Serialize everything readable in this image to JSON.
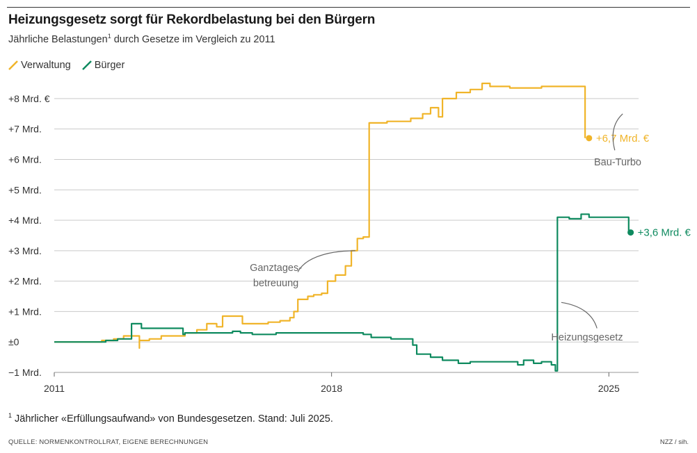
{
  "header": {
    "title": "Heizungsgesetz sorgt für Rekordbelastung bei den Bürgern",
    "subtitle_before": "Jährliche Belastungen",
    "subtitle_sup": "1",
    "subtitle_after": " durch Gesetze im Vergleich zu 2011"
  },
  "legend": [
    {
      "label": "Verwaltung",
      "color": "#F0B429"
    },
    {
      "label": "Bürger",
      "color": "#0E8A5F"
    }
  ],
  "footer": {
    "footnote_sup": "1",
    "footnote": " Jährlicher «Erfüllungsaufwand» von Bundesgesetzen. Stand: Juli 2025.",
    "source": "QUELLE: NORMENKONTROLLRAT, EIGENE BERECHNUNGEN",
    "credit": "NZZ / sih."
  },
  "chart_data": {
    "type": "line",
    "title": "Heizungsgesetz sorgt für Rekordbelastung bei den Bürgern",
    "ylabel": "Jährliche Belastungen (Mrd. €)",
    "xlim": [
      2011.0,
      2025.75
    ],
    "ylim": [
      -1,
      8.5
    ],
    "x_ticks": [
      {
        "value": 2011,
        "label": "2011"
      },
      {
        "value": 2018,
        "label": "2018"
      },
      {
        "value": 2025,
        "label": "2025"
      }
    ],
    "y_ticks": [
      {
        "value": 8,
        "label": "+8 Mrd. €"
      },
      {
        "value": 7,
        "label": "+7 Mrd."
      },
      {
        "value": 6,
        "label": "+6 Mrd."
      },
      {
        "value": 5,
        "label": "+5 Mrd."
      },
      {
        "value": 4,
        "label": "+4 Mrd."
      },
      {
        "value": 3,
        "label": "+3 Mrd."
      },
      {
        "value": 2,
        "label": "+2 Mrd."
      },
      {
        "value": 1,
        "label": "+1 Mrd."
      },
      {
        "value": 0,
        "label": "±0"
      },
      {
        "value": -1,
        "label": "−1 Mrd."
      }
    ],
    "series": [
      {
        "name": "Verwaltung",
        "color": "#F0B429",
        "end_label": "+6,7 Mrd. €",
        "points": [
          [
            2011.0,
            0
          ],
          [
            2012.2,
            0
          ],
          [
            2012.2,
            0.05
          ],
          [
            2012.5,
            0.05
          ],
          [
            2012.5,
            0.1
          ],
          [
            2012.75,
            0.1
          ],
          [
            2012.75,
            0.2
          ],
          [
            2013.15,
            0.2
          ],
          [
            2013.15,
            -0.2
          ],
          [
            2013.15,
            0.05
          ],
          [
            2013.4,
            0.05
          ],
          [
            2013.4,
            0.1
          ],
          [
            2013.7,
            0.1
          ],
          [
            2013.7,
            0.2
          ],
          [
            2014.0,
            0.2
          ],
          [
            2014.0,
            0.2
          ],
          [
            2014.3,
            0.2
          ],
          [
            2014.3,
            0.3
          ],
          [
            2014.6,
            0.3
          ],
          [
            2014.6,
            0.4
          ],
          [
            2014.85,
            0.4
          ],
          [
            2014.85,
            0.6
          ],
          [
            2015.1,
            0.6
          ],
          [
            2015.1,
            0.5
          ],
          [
            2015.25,
            0.5
          ],
          [
            2015.25,
            0.85
          ],
          [
            2015.75,
            0.85
          ],
          [
            2015.75,
            0.6
          ],
          [
            2016.4,
            0.6
          ],
          [
            2016.4,
            0.65
          ],
          [
            2016.7,
            0.65
          ],
          [
            2016.7,
            0.7
          ],
          [
            2016.95,
            0.7
          ],
          [
            2016.95,
            0.8
          ],
          [
            2017.05,
            0.8
          ],
          [
            2017.05,
            1.0
          ],
          [
            2017.15,
            1.0
          ],
          [
            2017.15,
            1.4
          ],
          [
            2017.4,
            1.4
          ],
          [
            2017.4,
            1.5
          ],
          [
            2017.55,
            1.5
          ],
          [
            2017.55,
            1.55
          ],
          [
            2017.75,
            1.55
          ],
          [
            2017.75,
            1.6
          ],
          [
            2017.9,
            1.6
          ],
          [
            2017.9,
            2.0
          ],
          [
            2018.1,
            2.0
          ],
          [
            2018.1,
            2.2
          ],
          [
            2018.35,
            2.2
          ],
          [
            2018.35,
            2.5
          ],
          [
            2018.5,
            2.5
          ],
          [
            2018.5,
            3.0
          ],
          [
            2018.65,
            3.0
          ],
          [
            2018.65,
            3.4
          ],
          [
            2018.8,
            3.4
          ],
          [
            2018.8,
            3.45
          ],
          [
            2018.95,
            3.45
          ],
          [
            2018.95,
            7.2
          ],
          [
            2019.4,
            7.2
          ],
          [
            2019.4,
            7.25
          ],
          [
            2020.0,
            7.25
          ],
          [
            2020.0,
            7.35
          ],
          [
            2020.3,
            7.35
          ],
          [
            2020.3,
            7.5
          ],
          [
            2020.5,
            7.5
          ],
          [
            2020.5,
            7.7
          ],
          [
            2020.7,
            7.7
          ],
          [
            2020.7,
            7.4
          ],
          [
            2020.8,
            7.4
          ],
          [
            2020.8,
            8.0
          ],
          [
            2021.15,
            8.0
          ],
          [
            2021.15,
            8.2
          ],
          [
            2021.5,
            8.2
          ],
          [
            2021.5,
            8.3
          ],
          [
            2021.8,
            8.3
          ],
          [
            2021.8,
            8.5
          ],
          [
            2022.0,
            8.5
          ],
          [
            2022.0,
            8.4
          ],
          [
            2022.5,
            8.4
          ],
          [
            2022.5,
            8.35
          ],
          [
            2023.3,
            8.35
          ],
          [
            2023.3,
            8.4
          ],
          [
            2024.4,
            8.4
          ],
          [
            2024.4,
            6.7
          ]
        ],
        "end": [
          2024.5,
          6.7
        ]
      },
      {
        "name": "Bürger",
        "color": "#0E8A5F",
        "end_label": "+3,6 Mrd. €",
        "points": [
          [
            2011.0,
            0
          ],
          [
            2012.3,
            0
          ],
          [
            2012.3,
            0.05
          ],
          [
            2012.6,
            0.05
          ],
          [
            2012.6,
            0.1
          ],
          [
            2012.95,
            0.1
          ],
          [
            2012.95,
            0.6
          ],
          [
            2013.2,
            0.6
          ],
          [
            2013.2,
            0.45
          ],
          [
            2014.25,
            0.45
          ],
          [
            2014.25,
            0.25
          ],
          [
            2014.3,
            0.25
          ],
          [
            2014.3,
            0.3
          ],
          [
            2015.5,
            0.3
          ],
          [
            2015.5,
            0.35
          ],
          [
            2015.7,
            0.35
          ],
          [
            2015.7,
            0.3
          ],
          [
            2016.0,
            0.3
          ],
          [
            2016.0,
            0.25
          ],
          [
            2016.6,
            0.25
          ],
          [
            2016.6,
            0.3
          ],
          [
            2018.8,
            0.3
          ],
          [
            2018.8,
            0.25
          ],
          [
            2019.0,
            0.25
          ],
          [
            2019.0,
            0.15
          ],
          [
            2019.5,
            0.15
          ],
          [
            2019.5,
            0.1
          ],
          [
            2020.05,
            0.1
          ],
          [
            2020.05,
            -0.1
          ],
          [
            2020.15,
            -0.1
          ],
          [
            2020.15,
            -0.4
          ],
          [
            2020.5,
            -0.4
          ],
          [
            2020.5,
            -0.5
          ],
          [
            2020.8,
            -0.5
          ],
          [
            2020.8,
            -0.6
          ],
          [
            2021.2,
            -0.6
          ],
          [
            2021.2,
            -0.7
          ],
          [
            2021.5,
            -0.7
          ],
          [
            2021.5,
            -0.65
          ],
          [
            2022.7,
            -0.65
          ],
          [
            2022.7,
            -0.75
          ],
          [
            2022.85,
            -0.75
          ],
          [
            2022.85,
            -0.6
          ],
          [
            2023.1,
            -0.6
          ],
          [
            2023.1,
            -0.7
          ],
          [
            2023.3,
            -0.7
          ],
          [
            2023.3,
            -0.65
          ],
          [
            2023.55,
            -0.65
          ],
          [
            2023.55,
            -0.75
          ],
          [
            2023.65,
            -0.75
          ],
          [
            2023.65,
            -0.95
          ],
          [
            2023.7,
            -0.95
          ],
          [
            2023.7,
            4.1
          ],
          [
            2024.0,
            4.1
          ],
          [
            2024.0,
            4.05
          ],
          [
            2024.3,
            4.05
          ],
          [
            2024.3,
            4.2
          ],
          [
            2024.5,
            4.2
          ],
          [
            2024.5,
            4.1
          ],
          [
            2025.5,
            4.1
          ],
          [
            2025.5,
            3.6
          ]
        ],
        "end": [
          2025.55,
          3.6
        ]
      }
    ],
    "annotations": [
      {
        "lines": [
          "Ganztages-",
          "betreuung"
        ]
      },
      {
        "lines": [
          "Bau-Turbo"
        ]
      },
      {
        "lines": [
          "Heizungsgesetz"
        ]
      }
    ]
  }
}
